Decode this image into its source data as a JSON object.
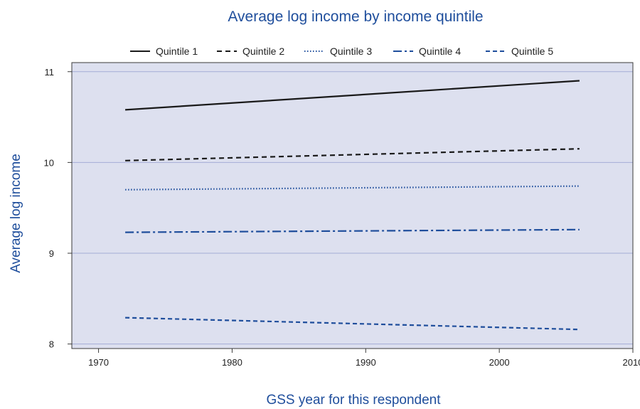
{
  "chart_data": {
    "type": "line",
    "title": "Average log income by income quintile",
    "xlabel": "GSS year for this respondent",
    "ylabel": "Average log income",
    "xlim": [
      1968,
      2010
    ],
    "ylim": [
      7.95,
      11.1
    ],
    "xticks": [
      1970,
      1980,
      1990,
      2000,
      2010
    ],
    "yticks": [
      8,
      9,
      10,
      11
    ],
    "grid": true,
    "legend_position": "top",
    "plot_background": "#dde0ef",
    "series": [
      {
        "name": "Quintile 1",
        "x": [
          1972,
          2006
        ],
        "y": [
          10.58,
          10.9
        ],
        "color": "#1a1a1a",
        "dash": "solid"
      },
      {
        "name": "Quintile 2",
        "x": [
          1972,
          2006
        ],
        "y": [
          10.02,
          10.15
        ],
        "color": "#1a1a1a",
        "dash": "dash"
      },
      {
        "name": "Quintile 3",
        "x": [
          1972,
          2006
        ],
        "y": [
          9.7,
          9.74
        ],
        "color": "#1f4e9c",
        "dash": "dot"
      },
      {
        "name": "Quintile 4",
        "x": [
          1972,
          2006
        ],
        "y": [
          9.23,
          9.26
        ],
        "color": "#1f4e9c",
        "dash": "dashdot"
      },
      {
        "name": "Quintile 5",
        "x": [
          1972,
          2006
        ],
        "y": [
          8.29,
          8.16
        ],
        "color": "#1f4e9c",
        "dash": "shortdash"
      }
    ]
  }
}
